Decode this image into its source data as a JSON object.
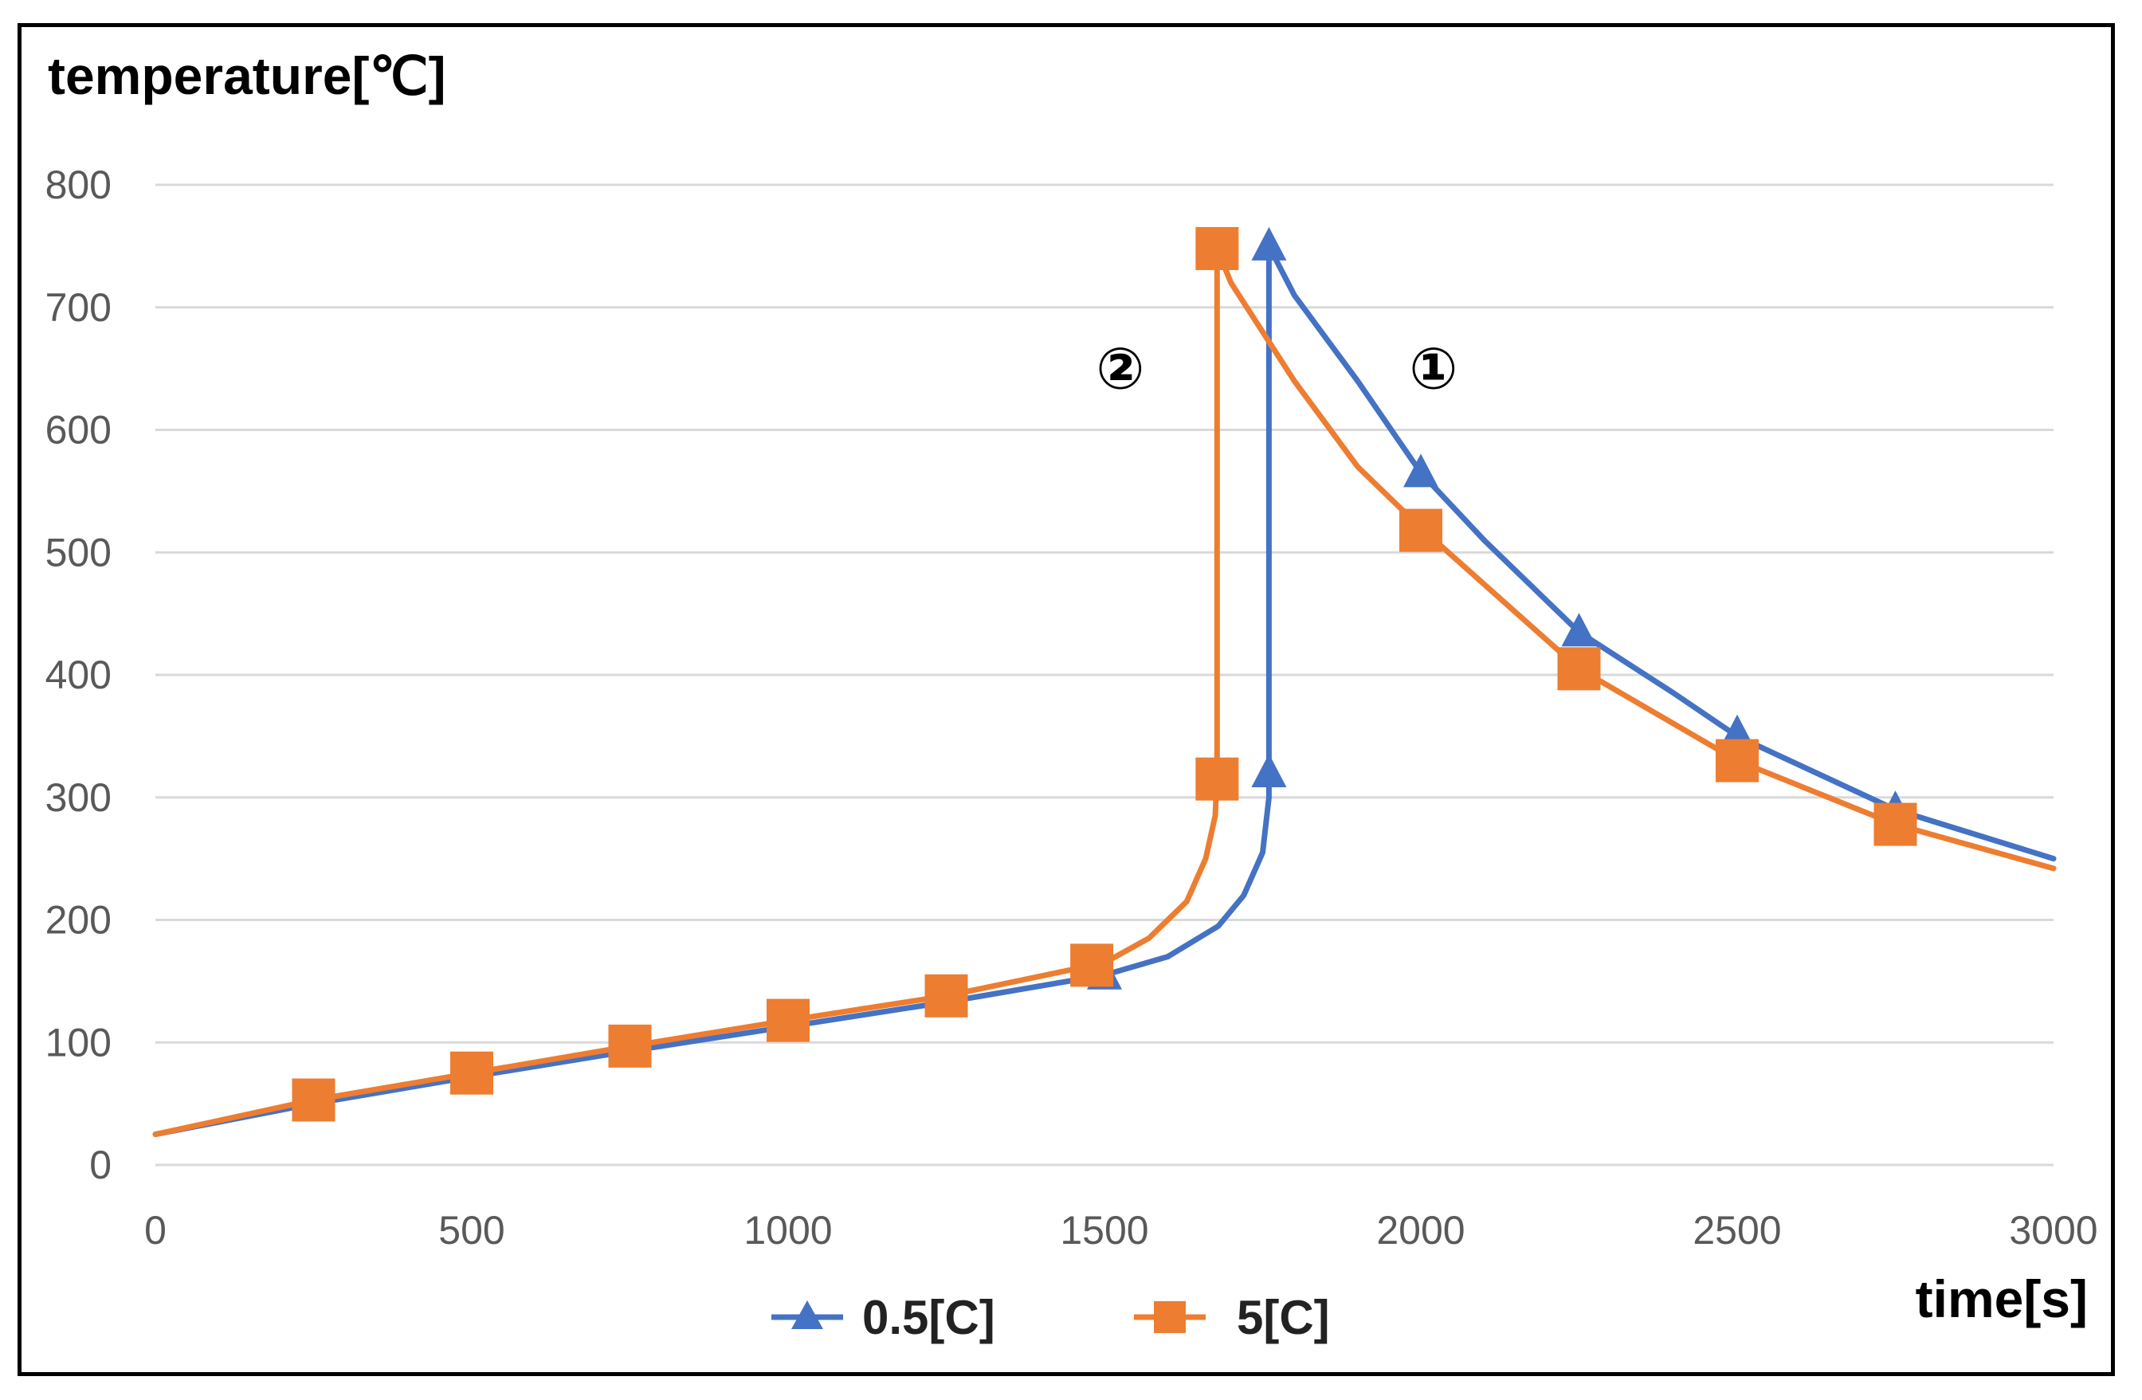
{
  "chart_data": {
    "type": "line",
    "title": "",
    "ylabel": "temperature[℃]",
    "xlabel": "time[s]",
    "xlim": [
      0,
      3000
    ],
    "ylim": [
      0,
      800
    ],
    "x_ticks": [
      0,
      500,
      1000,
      1500,
      2000,
      2500,
      3000
    ],
    "y_ticks": [
      0,
      100,
      200,
      300,
      400,
      500,
      600,
      700,
      800
    ],
    "grid": "horizontal",
    "legend_position": "bottom",
    "colors": {
      "series_0": "#4472C4",
      "series_1": "#ED7D31",
      "grid": "#D9D9D9"
    },
    "series": [
      {
        "name": "0.5[C]",
        "marker": "triangle",
        "curve": [
          [
            0,
            25
          ],
          [
            250,
            50
          ],
          [
            500,
            72
          ],
          [
            750,
            93
          ],
          [
            1000,
            113
          ],
          [
            1250,
            133
          ],
          [
            1500,
            155
          ],
          [
            1600,
            170
          ],
          [
            1680,
            195
          ],
          [
            1720,
            220
          ],
          [
            1750,
            255
          ],
          [
            1760,
            300
          ],
          [
            1760,
            500
          ],
          [
            1760,
            750
          ],
          [
            1800,
            710
          ],
          [
            1900,
            640
          ],
          [
            2000,
            565
          ],
          [
            2100,
            510
          ],
          [
            2250,
            435
          ],
          [
            2400,
            385
          ],
          [
            2500,
            350
          ],
          [
            2750,
            290
          ],
          [
            3000,
            250
          ]
        ],
        "markers": [
          [
            250,
            50
          ],
          [
            500,
            72
          ],
          [
            750,
            93
          ],
          [
            1000,
            113
          ],
          [
            1250,
            133
          ],
          [
            1500,
            155
          ],
          [
            1760,
            320
          ],
          [
            1760,
            750
          ],
          [
            2000,
            565
          ],
          [
            2250,
            435
          ],
          [
            2500,
            352
          ],
          [
            2750,
            290
          ]
        ]
      },
      {
        "name": "5[C]",
        "marker": "square",
        "curve": [
          [
            0,
            25
          ],
          [
            250,
            53
          ],
          [
            500,
            75
          ],
          [
            750,
            97
          ],
          [
            1000,
            118
          ],
          [
            1250,
            138
          ],
          [
            1500,
            165
          ],
          [
            1570,
            185
          ],
          [
            1630,
            215
          ],
          [
            1660,
            250
          ],
          [
            1675,
            285
          ],
          [
            1678,
            320
          ],
          [
            1678,
            500
          ],
          [
            1678,
            748
          ],
          [
            1700,
            720
          ],
          [
            1800,
            640
          ],
          [
            1900,
            570
          ],
          [
            2000,
            520
          ],
          [
            2250,
            405
          ],
          [
            2500,
            330
          ],
          [
            2750,
            278
          ],
          [
            3000,
            242
          ]
        ],
        "markers": [
          [
            250,
            53
          ],
          [
            500,
            75
          ],
          [
            750,
            97
          ],
          [
            1000,
            118
          ],
          [
            1250,
            138
          ],
          [
            1480,
            163
          ],
          [
            1678,
            315
          ],
          [
            1678,
            748
          ],
          [
            2000,
            518
          ],
          [
            2250,
            405
          ],
          [
            2500,
            330
          ],
          [
            2750,
            278
          ]
        ]
      }
    ],
    "annotations": [
      {
        "text": "②",
        "x": 1525,
        "y": 650
      },
      {
        "text": "①",
        "x": 2020,
        "y": 650
      }
    ]
  }
}
